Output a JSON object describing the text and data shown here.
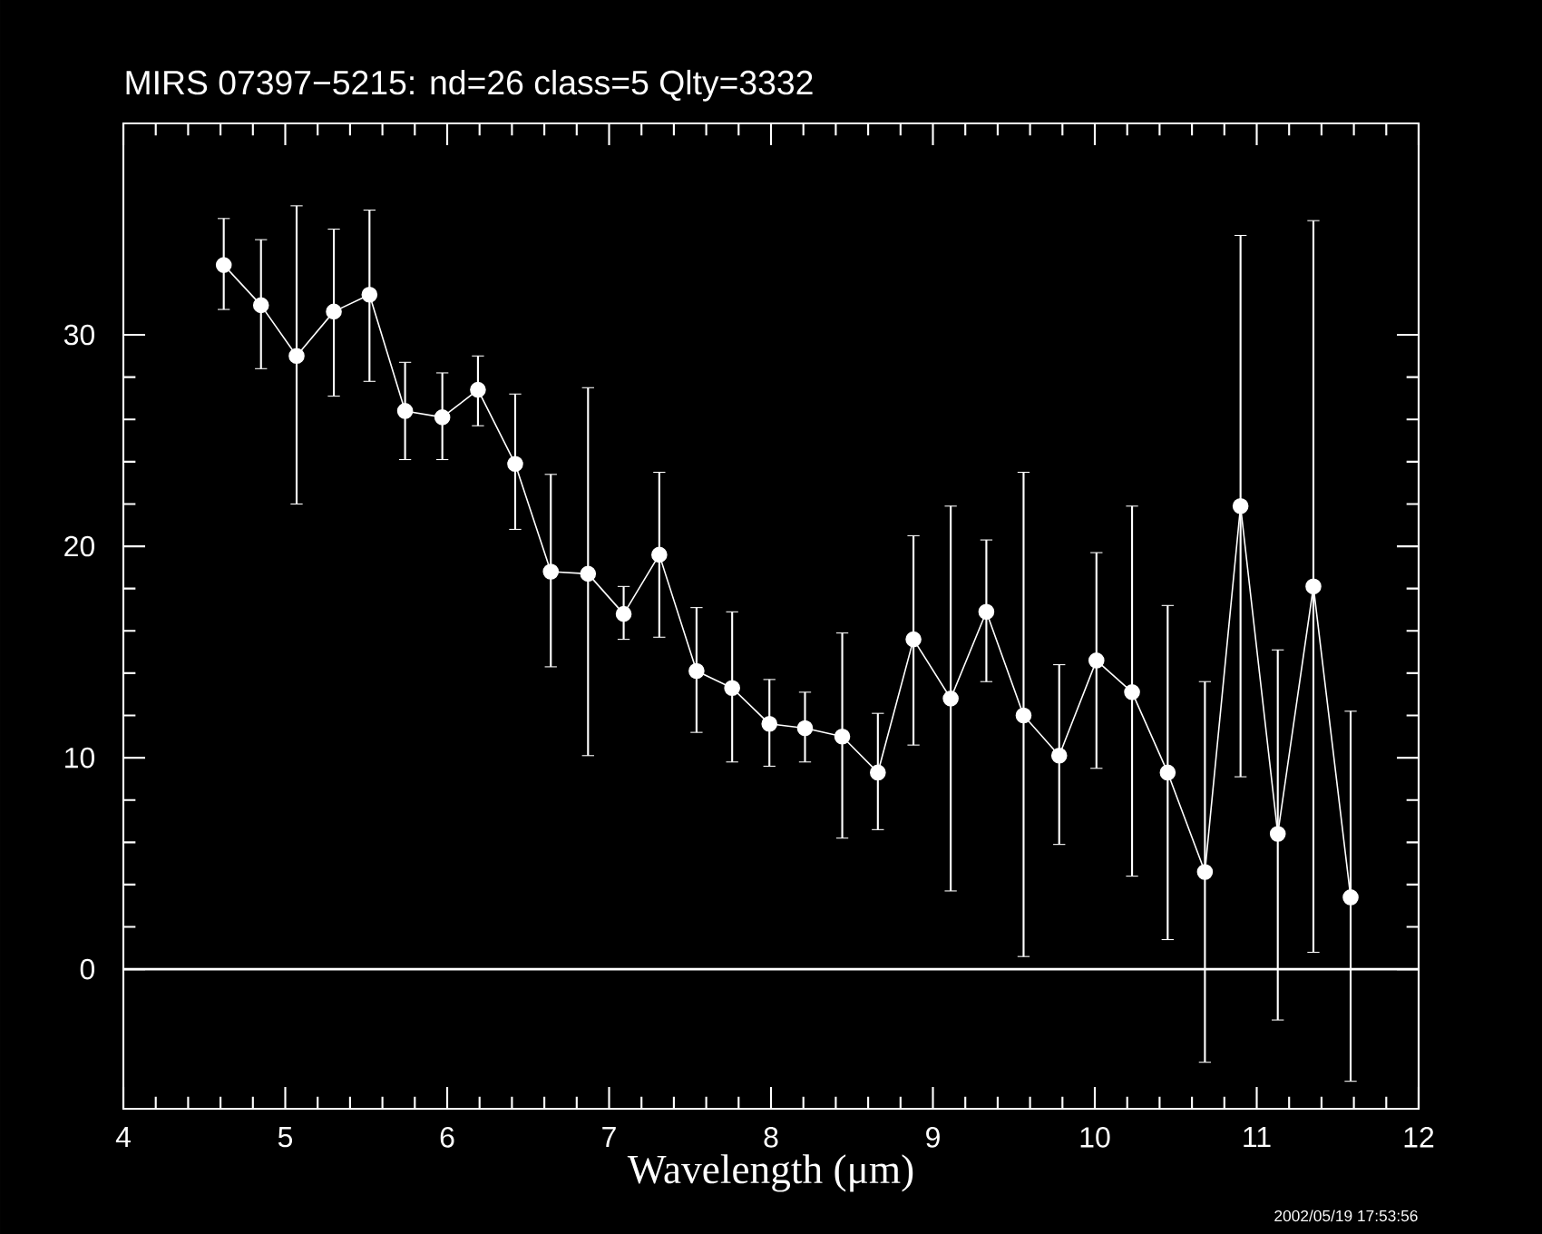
{
  "chart_data": {
    "type": "line",
    "title": "MIRS 07397−5215:    nd=26   class=5   Qlty=3332",
    "xlabel": "Wavelength (μm)",
    "annotations": [
      "2002/05/19 17:53:56"
    ],
    "xlim": [
      4,
      12
    ],
    "xticks": [
      4,
      5,
      6,
      7,
      8,
      9,
      10,
      11,
      12
    ],
    "ylim": [
      -6.6,
      40
    ],
    "yticks": [
      0,
      10,
      20,
      30
    ],
    "marker": "circle",
    "line_style": "solid",
    "ref_lines": [
      {
        "axis": "y",
        "value": 0,
        "color": "#ffffff"
      }
    ],
    "series": [
      {
        "color": "#ffffff",
        "x": [
          4.62,
          4.85,
          5.07,
          5.3,
          5.52,
          5.74,
          5.97,
          6.19,
          6.42,
          6.64,
          6.87,
          7.09,
          7.31,
          7.54,
          7.76,
          7.99,
          8.21,
          8.44,
          8.66,
          8.88,
          9.11,
          9.33,
          9.56,
          9.78,
          10.01,
          10.23,
          10.45,
          10.68,
          10.9,
          11.13,
          11.35,
          11.58
        ],
        "values": [
          33.3,
          31.4,
          29.0,
          31.1,
          31.9,
          26.4,
          26.1,
          27.4,
          23.9,
          18.8,
          18.7,
          16.8,
          19.6,
          14.1,
          13.3,
          11.6,
          11.4,
          11.0,
          9.3,
          15.6,
          12.8,
          16.9,
          12.0,
          10.1,
          14.6,
          13.1,
          9.3,
          4.6,
          21.9,
          6.4,
          18.1,
          3.4
        ],
        "errors": [
          [
            31.2,
            35.5
          ],
          [
            28.4,
            34.5
          ],
          [
            22.0,
            36.1
          ],
          [
            27.1,
            35.0
          ],
          [
            27.8,
            35.9
          ],
          [
            24.1,
            28.7
          ],
          [
            24.1,
            28.2
          ],
          [
            25.7,
            29.0
          ],
          [
            20.8,
            27.2
          ],
          [
            14.3,
            23.4
          ],
          [
            10.1,
            27.5
          ],
          [
            15.6,
            18.1
          ],
          [
            15.7,
            23.5
          ],
          [
            11.2,
            17.1
          ],
          [
            9.8,
            16.9
          ],
          [
            9.6,
            13.7
          ],
          [
            9.8,
            13.1
          ],
          [
            6.2,
            15.9
          ],
          [
            6.6,
            12.1
          ],
          [
            10.6,
            20.5
          ],
          [
            3.7,
            21.9
          ],
          [
            13.6,
            20.3
          ],
          [
            0.6,
            23.5
          ],
          [
            5.9,
            14.4
          ],
          [
            9.5,
            19.7
          ],
          [
            4.4,
            21.9
          ],
          [
            1.4,
            17.2
          ],
          [
            -4.4,
            13.6
          ],
          [
            9.1,
            34.7
          ],
          [
            -2.4,
            15.1
          ],
          [
            0.8,
            35.4
          ],
          [
            -5.3,
            12.2
          ]
        ]
      }
    ]
  }
}
